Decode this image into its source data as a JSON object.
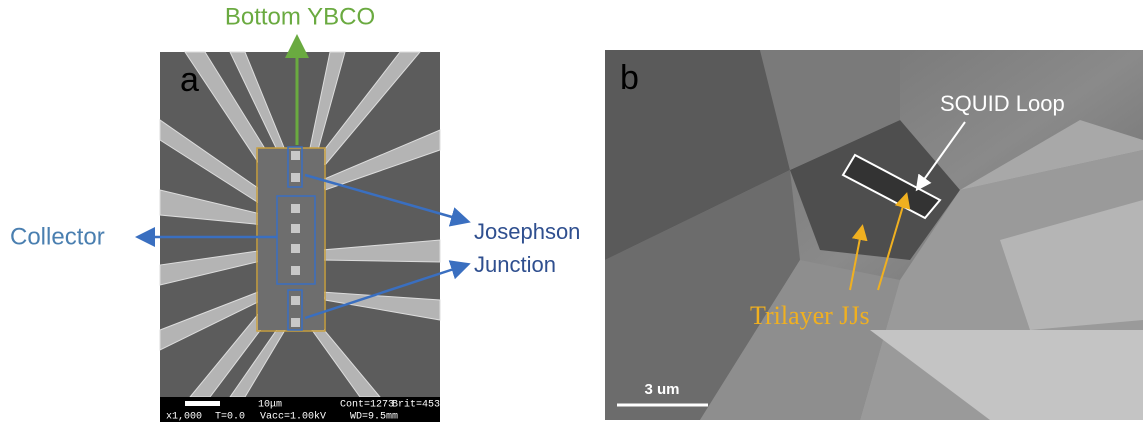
{
  "panel_a": {
    "label": "a",
    "top_arrow_label": "Bottom YBCO",
    "left_arrow_label": "Collector",
    "right_arrow_label": [
      "Josephson",
      "Junction"
    ],
    "info_bar": {
      "scale": "10μm",
      "contrast": "Cont=1273",
      "brightness": "Brit=453",
      "magnification": "x1,000",
      "tilt": "T=0.0",
      "voltage": "Vacc=1.00kV",
      "working_distance": "WD=9.5mm"
    }
  },
  "panel_b": {
    "label": "b",
    "loop_label": "SQUID Loop",
    "junction_label": "Trilayer JJs",
    "scale_bar": "3 um"
  }
}
